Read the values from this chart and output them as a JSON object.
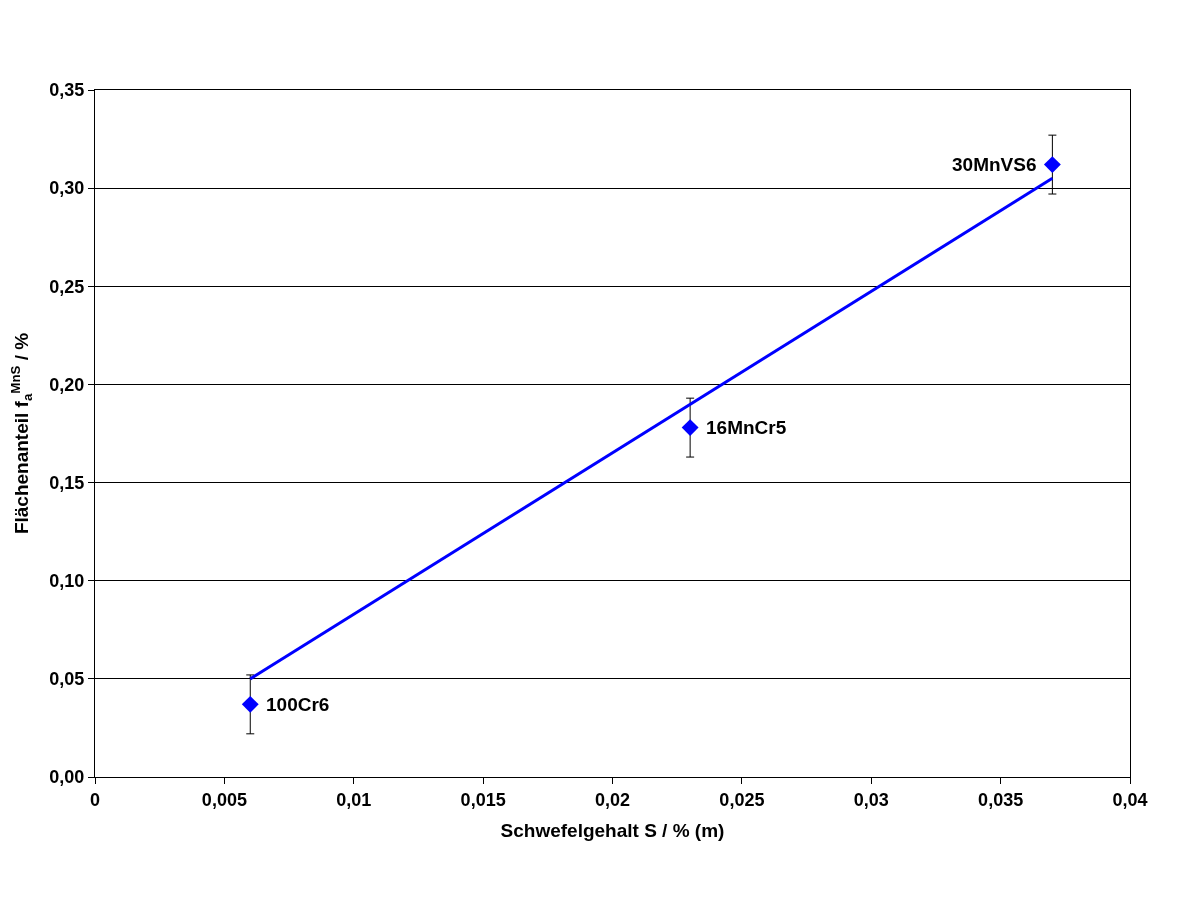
{
  "chart_data": {
    "type": "scatter",
    "xlabel": "Schwefelgehalt S / % (m)",
    "ylabel": "Flächenanteil f$_{a}$$^{MnS}$ / %",
    "x": [
      0.006,
      0.023,
      0.037
    ],
    "series": [
      {
        "color": "#0000ff",
        "values": [
          0.037,
          0.178,
          0.312
        ],
        "errors": [
          0.015,
          0.015,
          0.015
        ],
        "marker": "diamond"
      },
      {
        "type": "line",
        "color": "#0000ff",
        "x": [
          0.006,
          0.037
        ],
        "values": [
          0.05,
          0.305
        ],
        "marker": "none",
        "line_style": "solid"
      }
    ],
    "annotations": [
      {
        "text": "100Cr6",
        "x": 0.006,
        "y": 0.037
      },
      {
        "text": "16MnCr5",
        "x": 0.023,
        "y": 0.178
      },
      {
        "text": "30MnVS6",
        "x": 0.037,
        "y": 0.312
      }
    ],
    "xlim": [
      0,
      0.04
    ],
    "ylim": [
      0,
      0.35
    ],
    "xticks": [
      0,
      {
        "value": 0.005,
        "label": "0,005"
      },
      {
        "value": 0.01,
        "label": "0,01"
      },
      {
        "value": 0.015,
        "label": "0,015"
      },
      {
        "value": 0.02,
        "label": "0,02"
      },
      {
        "value": 0.025,
        "label": "0,025"
      },
      {
        "value": 0.03,
        "label": "0,03"
      },
      {
        "value": 0.035,
        "label": "0,035"
      },
      {
        "value": 0.04,
        "label": "0,04"
      }
    ],
    "yticks": [
      {
        "value": 0,
        "label": "0,00"
      },
      {
        "value": 0.05,
        "label": "0,05"
      },
      {
        "value": 0.1,
        "label": "0,10"
      },
      {
        "value": 0.15,
        "label": "0,15"
      },
      {
        "value": 0.2,
        "label": "0,20"
      },
      {
        "value": 0.25,
        "label": "0,25"
      },
      {
        "value": 0.3,
        "label": "0,30"
      },
      {
        "value": 0.35,
        "label": "0,35"
      }
    ],
    "grid": "y"
  }
}
